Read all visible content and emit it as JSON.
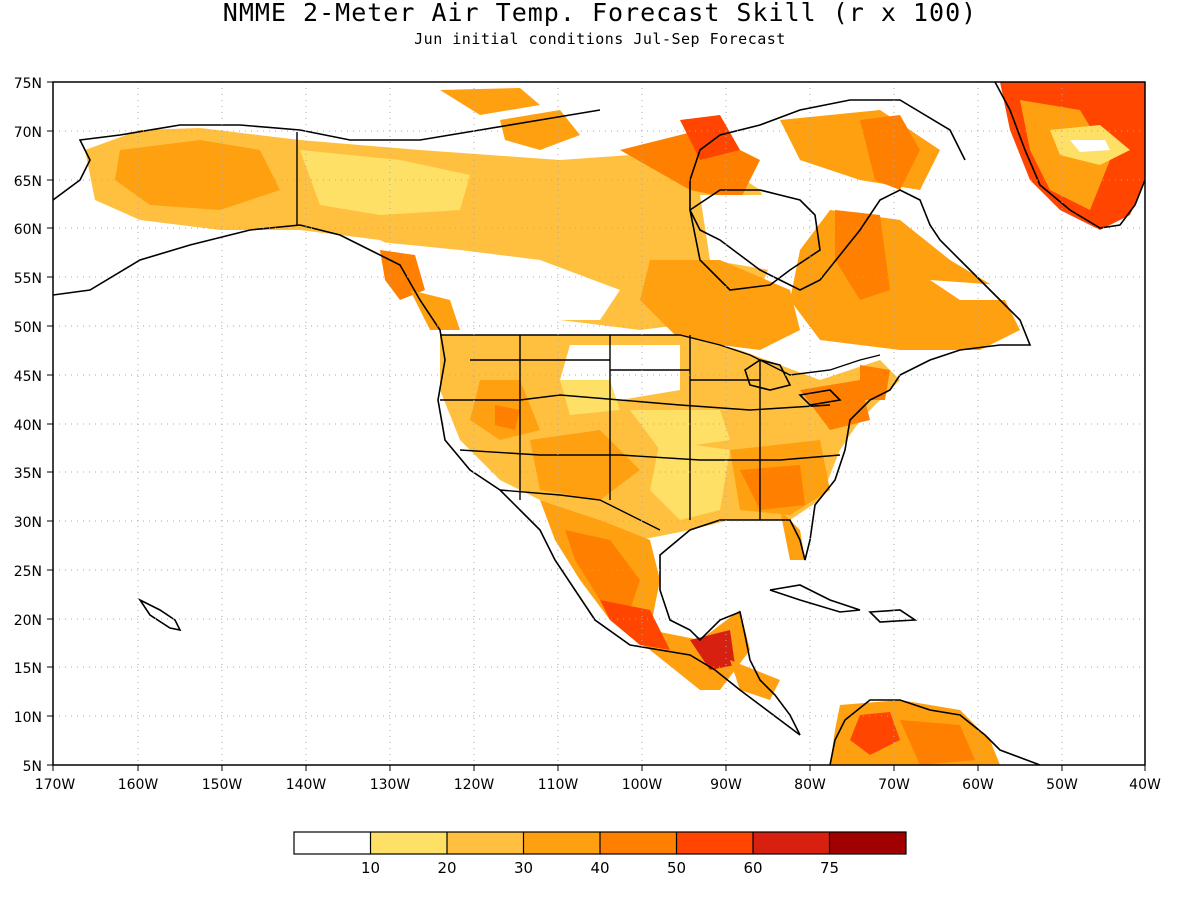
{
  "title": "NMME 2-Meter Air Temp. Forecast Skill (r x 100)",
  "subtitle": "Jun initial conditions  Jul-Sep Forecast",
  "map": {
    "projection": "equirectangular",
    "lon_range": [
      -170,
      -40
    ],
    "lat_range": [
      5,
      75
    ],
    "gridlines": "dotted, every 10° longitude and 5° latitude",
    "lat_labels": [
      "75N",
      "70N",
      "65N",
      "60N",
      "55N",
      "50N",
      "45N",
      "40N",
      "35N",
      "30N",
      "25N",
      "20N",
      "15N",
      "10N",
      "5N"
    ],
    "lon_labels": [
      "170W",
      "160W",
      "150W",
      "140W",
      "130W",
      "120W",
      "110W",
      "100W",
      "90W",
      "80W",
      "70W",
      "60W",
      "50W",
      "40W"
    ]
  },
  "colorbar": {
    "labels": [
      "10",
      "20",
      "30",
      "40",
      "50",
      "60",
      "75"
    ],
    "colors": [
      "#ffffff",
      "#ffe066",
      "#ffc040",
      "#ffa010",
      "#ff8000",
      "#ff4500",
      "#d82010",
      "#a00000"
    ]
  }
}
